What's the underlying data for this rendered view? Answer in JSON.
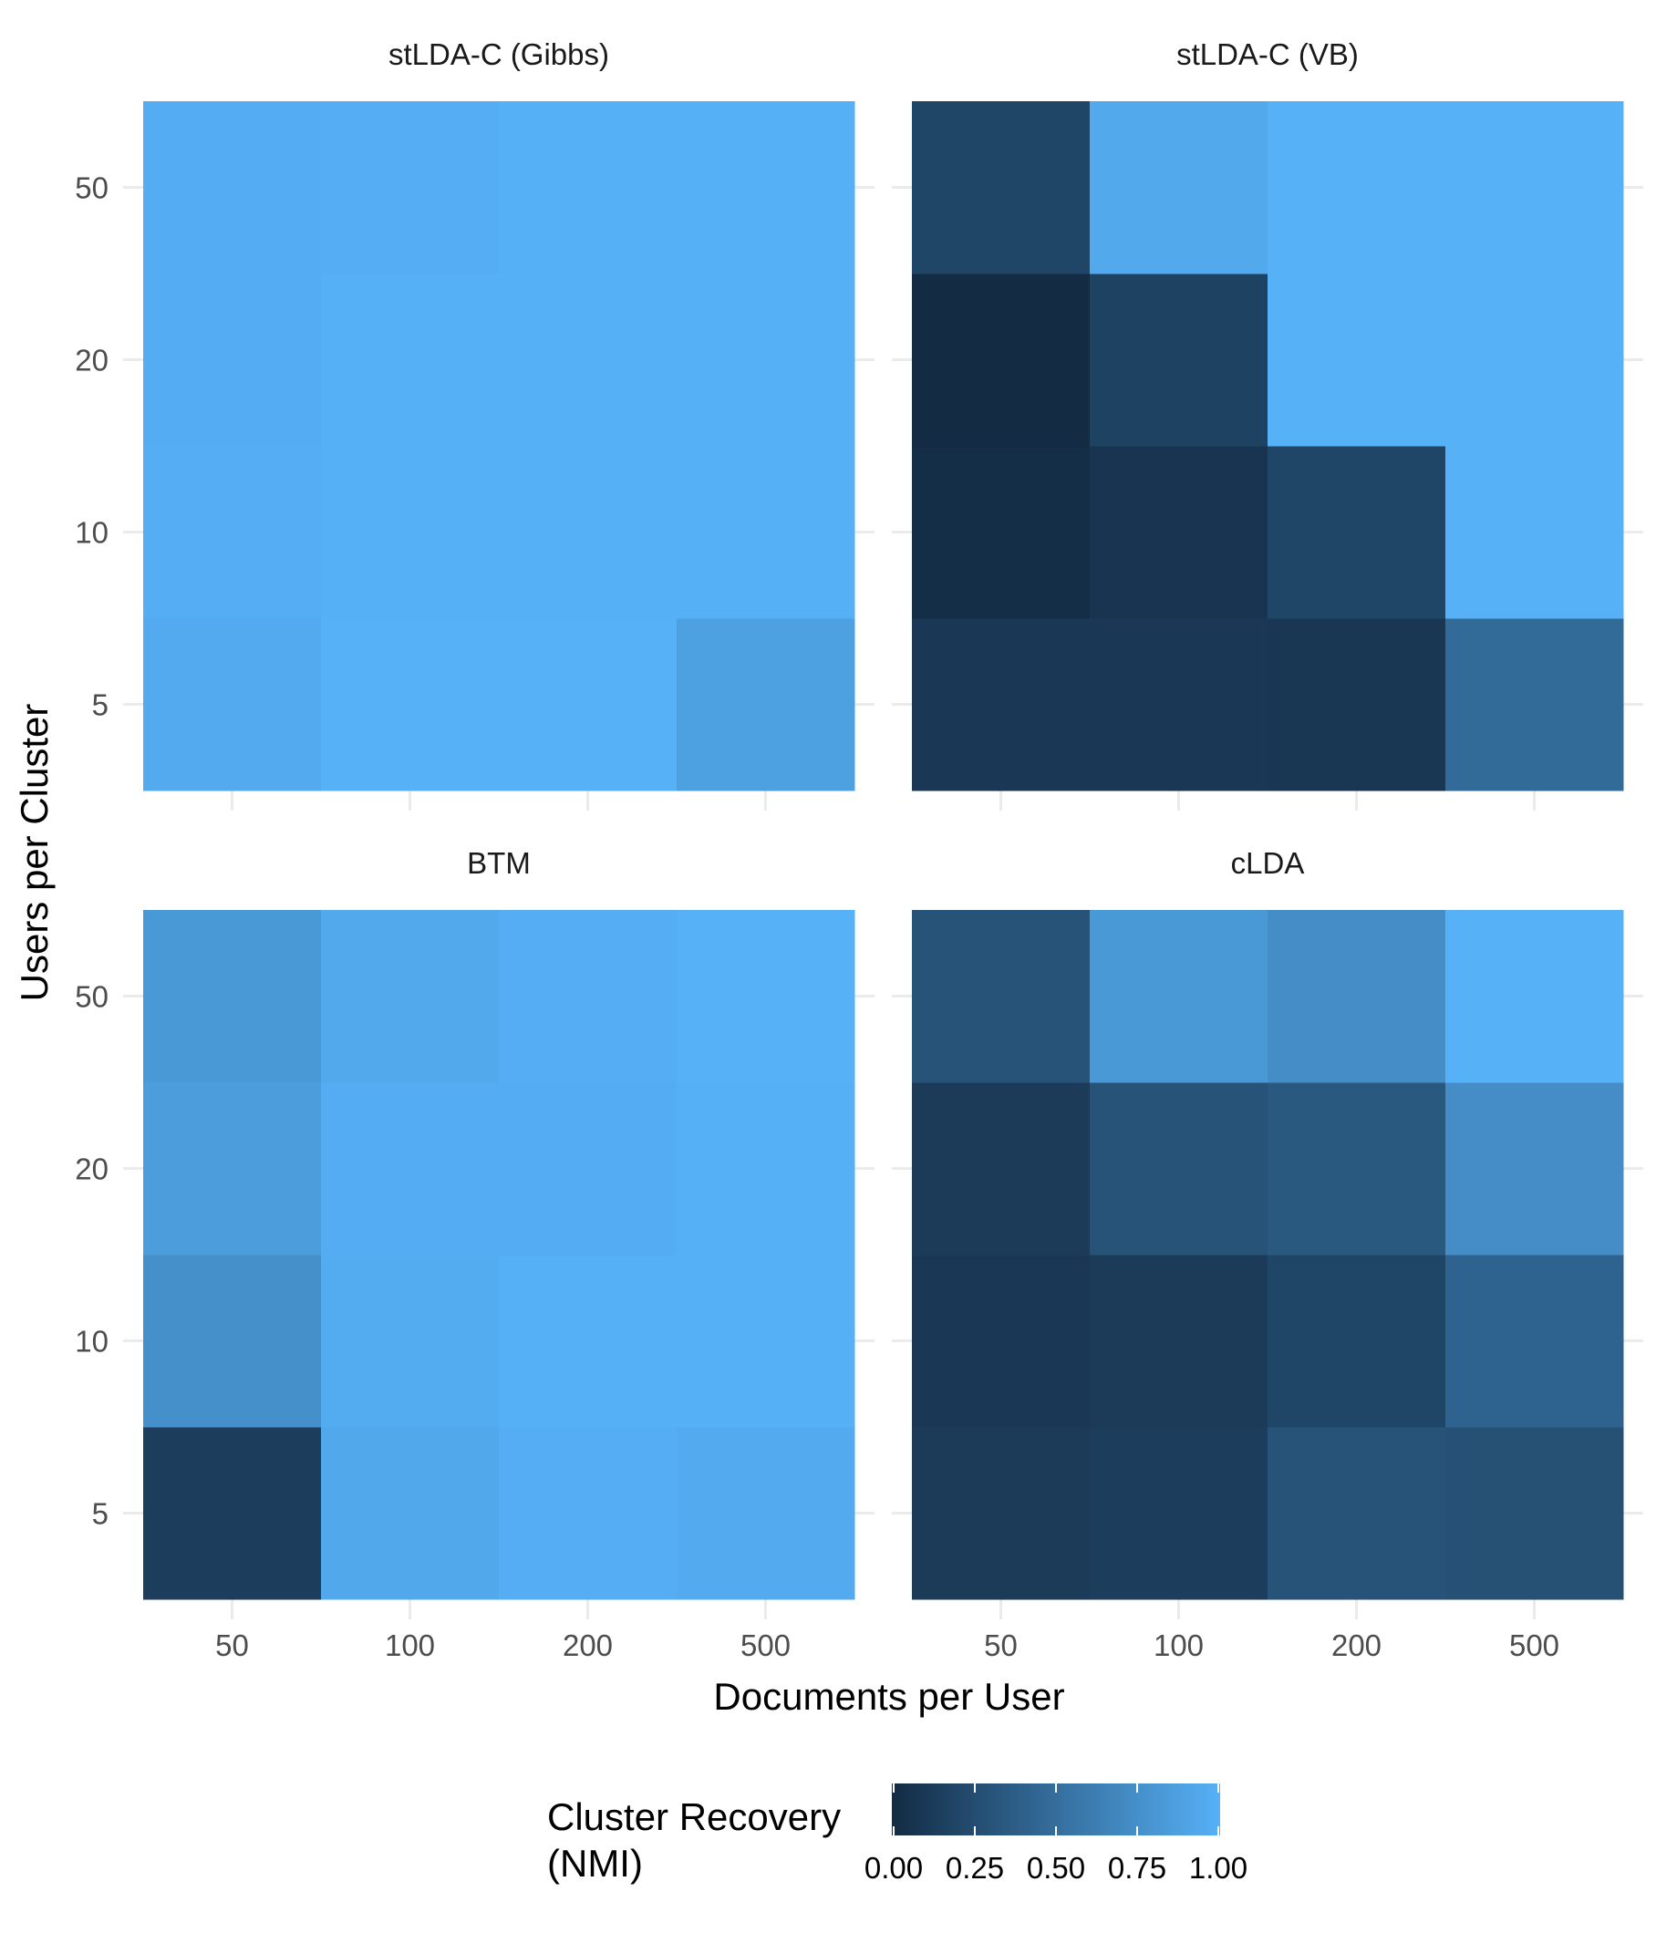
{
  "chart_data": {
    "type": "heatmap",
    "xlabel": "Documents per User",
    "ylabel": "Users per Cluster",
    "x_categories": [
      "50",
      "100",
      "200",
      "500"
    ],
    "y_categories": [
      "5",
      "10",
      "20",
      "50"
    ],
    "grid": true,
    "legend": {
      "title_lines": [
        "Cluster Recovery",
        "(NMI)"
      ],
      "position": "bottom",
      "range": [
        0,
        1
      ],
      "ticks": [
        "0.00",
        "0.25",
        "0.50",
        "0.75",
        "1.00"
      ],
      "low_color": "#132b43",
      "high_color": "#56b1f7"
    },
    "panels": [
      {
        "title": "stLDA-C (Gibbs)",
        "values": [
          [
            0.95,
            1.0,
            1.0,
            0.88
          ],
          [
            0.98,
            0.99,
            0.99,
            0.99
          ],
          [
            0.97,
            0.99,
            0.99,
            0.99
          ],
          [
            0.97,
            0.98,
            0.99,
            0.99
          ]
        ]
      },
      {
        "title": "stLDA-C (VB)",
        "values": [
          [
            0.1,
            0.1,
            0.09,
            0.47
          ],
          [
            0.02,
            0.07,
            0.2,
            1.0
          ],
          [
            0.0,
            0.17,
            1.0,
            1.0
          ],
          [
            0.2,
            0.94,
            1.0,
            1.0
          ]
        ]
      },
      {
        "title": "BTM",
        "values": [
          [
            0.14,
            0.93,
            0.98,
            0.95
          ],
          [
            0.75,
            0.96,
            0.99,
            0.99
          ],
          [
            0.85,
            0.97,
            0.97,
            0.99
          ],
          [
            0.82,
            0.94,
            0.98,
            1.0
          ]
        ]
      },
      {
        "title": "cLDA",
        "values": [
          [
            0.12,
            0.14,
            0.3,
            0.28
          ],
          [
            0.1,
            0.12,
            0.2,
            0.42
          ],
          [
            0.12,
            0.3,
            0.34,
            0.73
          ],
          [
            0.3,
            0.82,
            0.73,
            1.0
          ]
        ]
      }
    ]
  }
}
